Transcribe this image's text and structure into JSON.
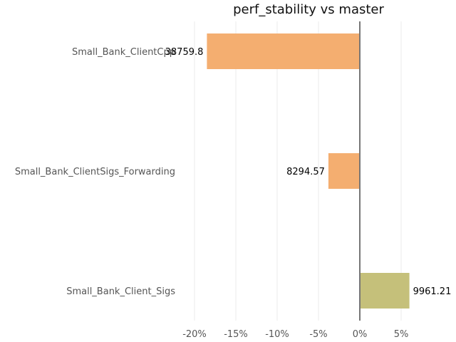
{
  "chart_data": {
    "type": "bar",
    "orientation": "horizontal",
    "title": "perf_stability vs master",
    "xlabel": "",
    "ylabel": "",
    "categories": [
      "Small_Bank_ClientCpp",
      "Small_Bank_ClientSigs_Forwarding",
      "Small_Bank_Client_Sigs"
    ],
    "values": [
      -18.5,
      -3.8,
      6.0
    ],
    "data_labels": [
      "38759.8",
      "8294.57",
      "9961.21"
    ],
    "bar_colors": [
      "#f4ae70",
      "#f4ae70",
      "#c5c07a"
    ],
    "xlim": [
      -20,
      6
    ],
    "x_ticks": [
      -20,
      -15,
      -10,
      -5,
      0,
      5
    ],
    "x_tick_labels": [
      "-20%",
      "-15%",
      "-10%",
      "-5%",
      "0%",
      "5%"
    ],
    "grid": "vertical",
    "legend": "none",
    "zero_line_color": "#777777"
  }
}
